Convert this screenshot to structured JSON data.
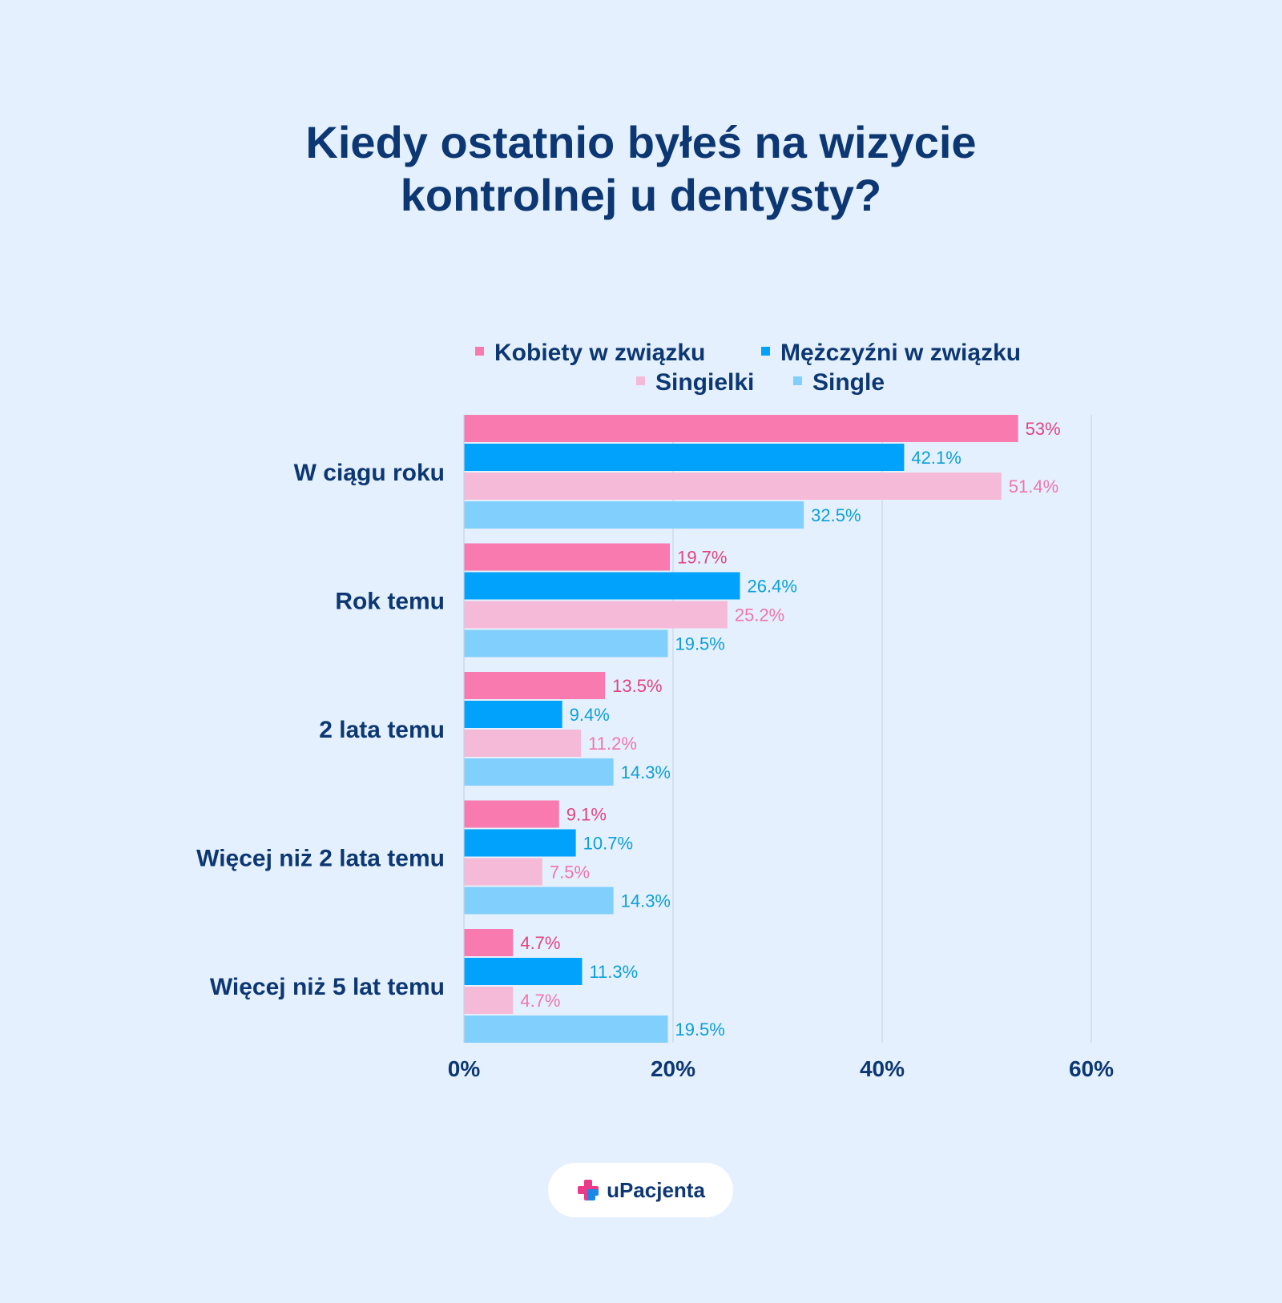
{
  "title_lines": [
    "Kiedy ostatnio byłeś na wizycie",
    "kontrolnej u dentysty?"
  ],
  "brand": {
    "name": "uPacjenta",
    "color_pink": "#ea3b8a",
    "color_blue": "#1a88e6"
  },
  "chart_data": {
    "type": "bar",
    "orientation": "horizontal",
    "categories": [
      "W ciągu roku",
      "Rok temu",
      "2 lata temu",
      "Więcej niż 2 lata temu",
      "Więcej niż 5 lat temu"
    ],
    "series": [
      {
        "name": "Kobiety w związku",
        "color": "#f87aae",
        "label_color": "#e2447f",
        "values": [
          53,
          19.7,
          13.5,
          9.1,
          4.7
        ],
        "labels": [
          "53%",
          "19.7%",
          "13.5%",
          "9.1%",
          "4.7%"
        ]
      },
      {
        "name": "Mężczyźni w związku",
        "color": "#00a2fc",
        "label_color": "#0d9fd8",
        "values": [
          42.1,
          26.4,
          9.4,
          10.7,
          11.3
        ],
        "labels": [
          "42.1%",
          "26.4%",
          "9.4%",
          "10.7%",
          "11.3%"
        ]
      },
      {
        "name": "Singielki",
        "color": "#f5bad7",
        "label_color": "#f075ad",
        "values": [
          51.4,
          25.2,
          11.2,
          7.5,
          4.7
        ],
        "labels": [
          "51.4%",
          "25.2%",
          "11.2%",
          "7.5%",
          "4.7%"
        ]
      },
      {
        "name": "Single",
        "color": "#80cffd",
        "label_color": "#0d9fd8",
        "values": [
          32.5,
          19.5,
          14.3,
          14.3,
          19.5
        ],
        "labels": [
          "32.5%",
          "19.5%",
          "14.3%",
          "14.3%",
          "19.5%"
        ]
      }
    ],
    "xlim": [
      0,
      60
    ],
    "xticks": [
      0,
      20,
      40,
      60
    ],
    "xtick_labels": [
      "0%",
      "20%",
      "40%",
      "60%"
    ],
    "grid": true,
    "legend_position": "top",
    "text_color": "#0c3772",
    "grid_color": "#c5d5e6"
  }
}
